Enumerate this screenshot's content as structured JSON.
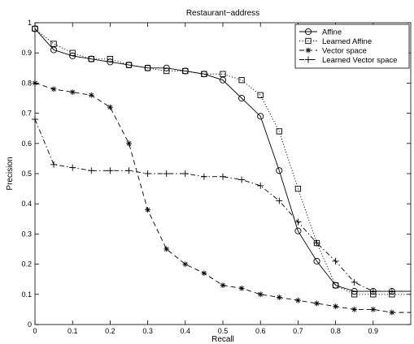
{
  "chart_data": {
    "type": "line",
    "title": "Restaurant−address",
    "xlabel": "Recall",
    "ylabel": "Precision",
    "xlim": [
      0,
      1
    ],
    "ylim": [
      0,
      1
    ],
    "grid": false,
    "legend_position": "top-right",
    "xticks": [
      "0",
      "0.1",
      "0.2",
      "0.3",
      "0.4",
      "0.5",
      "0.6",
      "0.7",
      "0.8",
      "0.9"
    ],
    "yticks": [
      "0",
      "0.1",
      "0.2",
      "0.3",
      "0.4",
      "0.5",
      "0.6",
      "0.7",
      "0.8",
      "0.9",
      "1"
    ],
    "x": [
      0,
      0.05,
      0.1,
      0.15,
      0.2,
      0.25,
      0.3,
      0.35,
      0.4,
      0.45,
      0.5,
      0.55,
      0.6,
      0.65,
      0.7,
      0.75,
      0.8,
      0.85,
      0.9,
      0.95,
      1.0
    ],
    "series": [
      {
        "name": "Affine",
        "line_style": "solid",
        "marker": "circle",
        "values": [
          0.98,
          0.91,
          0.89,
          0.88,
          0.87,
          0.86,
          0.85,
          0.85,
          0.84,
          0.83,
          0.81,
          0.75,
          0.69,
          0.51,
          0.31,
          0.21,
          0.13,
          0.11,
          0.11,
          0.11,
          0.11
        ]
      },
      {
        "name": "Learned Affine",
        "line_style": "dotted",
        "marker": "square",
        "values": [
          0.98,
          0.93,
          0.9,
          0.88,
          0.88,
          0.86,
          0.85,
          0.84,
          0.84,
          0.83,
          0.83,
          0.81,
          0.76,
          0.64,
          0.45,
          0.27,
          0.13,
          0.1,
          0.1,
          0.1,
          0.1
        ]
      },
      {
        "name": "Vector space",
        "line_style": "dashed",
        "marker": "asterisk",
        "values": [
          0.8,
          0.78,
          0.77,
          0.76,
          0.72,
          0.6,
          0.38,
          0.25,
          0.2,
          0.17,
          0.13,
          0.12,
          0.1,
          0.09,
          0.08,
          0.07,
          0.06,
          0.05,
          0.05,
          0.04,
          0.04
        ]
      },
      {
        "name": "Learned Vector space",
        "line_style": "dashdot",
        "marker": "plus",
        "values": [
          0.68,
          0.53,
          0.52,
          0.51,
          0.51,
          0.51,
          0.5,
          0.5,
          0.5,
          0.49,
          0.49,
          0.48,
          0.46,
          0.41,
          0.34,
          0.27,
          0.21,
          0.14,
          0.11,
          0.11,
          0.11
        ]
      }
    ]
  }
}
